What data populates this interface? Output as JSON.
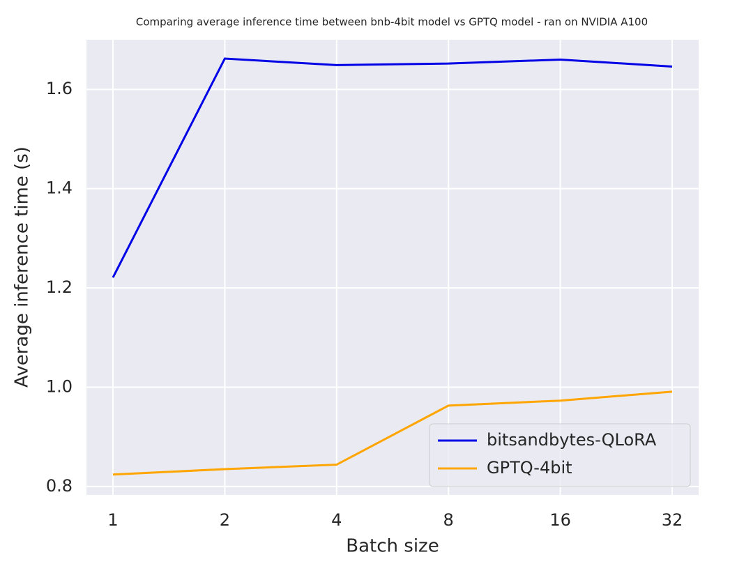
{
  "chart_data": {
    "type": "line",
    "title": "Comparing  average inference time between bnb-4bit model vs GPTQ model - ran on NVIDIA A100",
    "x_label": "Batch size",
    "y_label": "Average inference time (s)",
    "categories": [
      "1",
      "2",
      "4",
      "8",
      "16",
      "32"
    ],
    "series": [
      {
        "name": "bitsandbytes-QLoRA",
        "color": "#0000e6",
        "values": [
          1.221,
          1.662,
          1.649,
          1.652,
          1.66,
          1.646
        ]
      },
      {
        "name": "GPTQ-4bit",
        "color": "#ffa500",
        "values": [
          0.824,
          0.835,
          0.844,
          0.963,
          0.973,
          0.991
        ]
      }
    ],
    "ylim": [
      0.783,
      1.7
    ],
    "yticks": [
      0.8,
      {
        "value": 1,
        "label": "1.0"
      },
      1.2,
      1.4,
      1.6
    ],
    "grid": true,
    "legend": "lower-right"
  }
}
